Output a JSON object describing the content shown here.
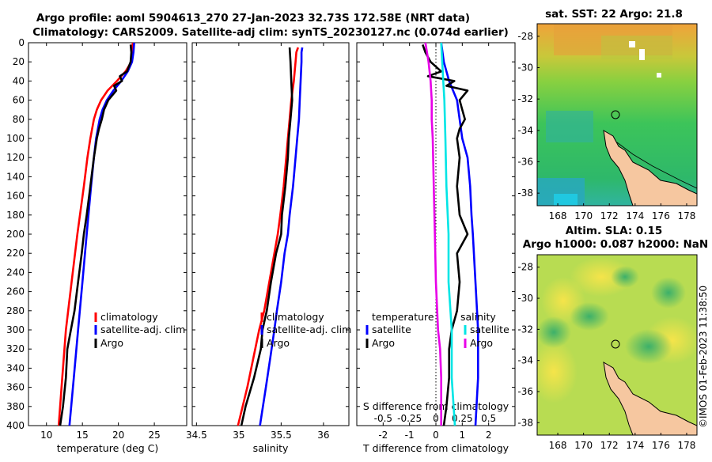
{
  "header": {
    "line1": "Argo profile: aoml 5904613_270 27-Jan-2023 32.73S 172.58E (NRT data)",
    "line2": "Climatology: CARS2009. Satellite-adj clim: synTS_20230127.nc (0.074d earlier)"
  },
  "colors": {
    "clim": "#ff0000",
    "sat": "#0000ff",
    "argo": "#000000",
    "cyan": "#00e5e5",
    "magenta": "#e800e8"
  },
  "chart_data": [
    {
      "type": "line",
      "name": "temperature",
      "xlabel": "temperature (deg C)",
      "ylabel": "",
      "xlim": [
        7.5,
        29.5
      ],
      "ylim": [
        400,
        0
      ],
      "xticks": [
        10,
        15,
        20,
        25
      ],
      "yticks": [
        0,
        20,
        40,
        60,
        80,
        100,
        120,
        140,
        160,
        180,
        200,
        220,
        240,
        260,
        280,
        300,
        320,
        340,
        360,
        380,
        400
      ],
      "legend": [
        "climatology",
        "satellite-adj. clim",
        "Argo"
      ],
      "series": [
        {
          "name": "climatology",
          "color": "clim",
          "depth": [
            0,
            10,
            20,
            30,
            40,
            50,
            60,
            70,
            80,
            100,
            120,
            150,
            200,
            250,
            300,
            350,
            400
          ],
          "values": [
            22.0,
            22.0,
            21.8,
            21.0,
            19.8,
            18.5,
            17.6,
            17.0,
            16.6,
            16.1,
            15.7,
            15.2,
            14.3,
            13.5,
            12.7,
            12.2,
            11.7
          ]
        },
        {
          "name": "satellite-adj. clim",
          "color": "sat",
          "depth": [
            0,
            10,
            20,
            30,
            40,
            50,
            60,
            70,
            80,
            100,
            120,
            150,
            200,
            250,
            300,
            350,
            400
          ],
          "values": [
            22.2,
            22.1,
            21.9,
            21.3,
            20.4,
            19.3,
            18.4,
            17.8,
            17.4,
            16.9,
            16.6,
            16.2,
            15.6,
            15.0,
            14.4,
            13.8,
            13.2
          ]
        },
        {
          "name": "Argo",
          "color": "argo",
          "depth": [
            2,
            10,
            20,
            30,
            35,
            40,
            45,
            50,
            60,
            70,
            80,
            90,
            100,
            120,
            150,
            180,
            200,
            220,
            250,
            280,
            300,
            320,
            350,
            380,
            400
          ],
          "values": [
            21.7,
            21.8,
            21.7,
            21.2,
            20.2,
            20.5,
            19.4,
            19.7,
            18.6,
            18.0,
            17.7,
            17.3,
            17.0,
            16.6,
            16.1,
            15.6,
            15.2,
            14.9,
            14.4,
            13.9,
            13.4,
            12.9,
            12.7,
            12.3,
            11.9
          ]
        }
      ]
    },
    {
      "type": "line",
      "name": "salinity",
      "xlabel": "salinity",
      "xlim": [
        34.45,
        36.3
      ],
      "ylim": [
        400,
        0
      ],
      "xticks": [
        "34.5",
        "35",
        "35.5",
        "36"
      ],
      "legend": [
        "climatology",
        "satellite-adj. clim",
        "Argo"
      ],
      "series": [
        {
          "name": "climatology",
          "color": "clim",
          "depth": [
            5,
            10,
            20,
            40,
            60,
            80,
            100,
            120,
            150,
            180,
            200,
            220,
            250,
            280,
            300,
            330,
            360,
            400
          ],
          "values": [
            35.7,
            35.68,
            35.67,
            35.65,
            35.62,
            35.6,
            35.58,
            35.56,
            35.53,
            35.49,
            35.46,
            35.42,
            35.36,
            35.3,
            35.24,
            35.17,
            35.1,
            34.99
          ]
        },
        {
          "name": "satellite-adj. clim",
          "color": "sat",
          "depth": [
            5,
            10,
            20,
            40,
            60,
            80,
            100,
            120,
            150,
            180,
            200,
            220,
            250,
            280,
            300,
            330,
            360,
            400
          ],
          "values": [
            35.75,
            35.74,
            35.74,
            35.73,
            35.72,
            35.71,
            35.69,
            35.67,
            35.64,
            35.6,
            35.58,
            35.54,
            35.5,
            35.45,
            35.42,
            35.37,
            35.32,
            35.25
          ]
        },
        {
          "name": "Argo",
          "color": "argo",
          "depth": [
            5,
            20,
            40,
            60,
            80,
            100,
            120,
            150,
            180,
            200,
            220,
            250,
            280,
            300,
            320,
            350,
            380,
            400
          ],
          "values": [
            35.6,
            35.61,
            35.62,
            35.63,
            35.61,
            35.59,
            35.58,
            35.55,
            35.51,
            35.5,
            35.44,
            35.38,
            35.33,
            35.28,
            35.26,
            35.18,
            35.08,
            35.03
          ]
        }
      ]
    },
    {
      "type": "line",
      "name": "difference",
      "xlabel": "T difference from climatology",
      "xlabel_top": "S difference from climatology",
      "xlim": [
        -3,
        3
      ],
      "ylim": [
        400,
        0
      ],
      "xticks": [
        "-2",
        "-1",
        "0",
        "1",
        "2"
      ],
      "xticks_top": [
        "-0.5",
        "-0.25",
        "0",
        "0.25",
        "0.5"
      ],
      "legend_titles": [
        "temperature",
        "salinity"
      ],
      "legend_left": [
        "satellite",
        "Argo"
      ],
      "legend_right": [
        "satellite",
        "Argo"
      ],
      "series": [
        {
          "name": "temperature satellite",
          "color": "sat",
          "depth": [
            0,
            20,
            40,
            60,
            80,
            100,
            120,
            150,
            180,
            200,
            250,
            300,
            350,
            400
          ],
          "values": [
            0.2,
            0.3,
            0.5,
            0.8,
            0.9,
            1.0,
            1.2,
            1.3,
            1.35,
            1.4,
            1.5,
            1.6,
            1.6,
            1.5
          ]
        },
        {
          "name": "temperature Argo",
          "color": "argo",
          "depth": [
            2,
            10,
            20,
            30,
            35,
            40,
            45,
            50,
            60,
            70,
            80,
            90,
            100,
            120,
            150,
            180,
            200,
            220,
            250,
            280,
            300,
            320,
            350,
            380,
            400
          ],
          "values": [
            -0.5,
            -0.4,
            -0.2,
            0.2,
            -0.3,
            0.7,
            0.4,
            1.2,
            0.9,
            1.0,
            1.1,
            0.9,
            0.8,
            0.9,
            0.8,
            0.9,
            1.2,
            0.8,
            0.9,
            0.8,
            0.6,
            0.5,
            0.5,
            0.4,
            0.3
          ]
        },
        {
          "name": "salinity satellite",
          "color": "cyan",
          "depth": [
            0,
            20,
            40,
            60,
            100,
            150,
            200,
            250,
            300,
            350,
            400
          ],
          "values": [
            0.05,
            0.06,
            0.07,
            0.08,
            0.09,
            0.1,
            0.12,
            0.12,
            0.15,
            0.15,
            0.18
          ]
        },
        {
          "name": "salinity Argo",
          "color": "magenta",
          "depth": [
            0,
            20,
            40,
            60,
            80,
            100,
            150,
            200,
            250,
            300,
            320,
            350,
            400
          ],
          "values": [
            -0.1,
            -0.07,
            -0.05,
            -0.04,
            -0.04,
            -0.03,
            -0.02,
            -0.01,
            0.0,
            0.02,
            0.04,
            0.05,
            0.05
          ]
        }
      ]
    }
  ],
  "maps": {
    "sst": {
      "title": "sat. SST: 22 Argo: 21.8"
    },
    "sla": {
      "title1": "Altim. SLA: 0.15",
      "title2": "Argo h1000: 0.087 h2000: NaN"
    },
    "xticks": [
      "168",
      "170",
      "172",
      "174",
      "176",
      "178"
    ],
    "yticks": [
      "-28",
      "-30",
      "-32",
      "-34",
      "-36",
      "-38"
    ]
  },
  "footer": {
    "credit": "©IMOS 01-Feb-2023 11:38:50"
  }
}
